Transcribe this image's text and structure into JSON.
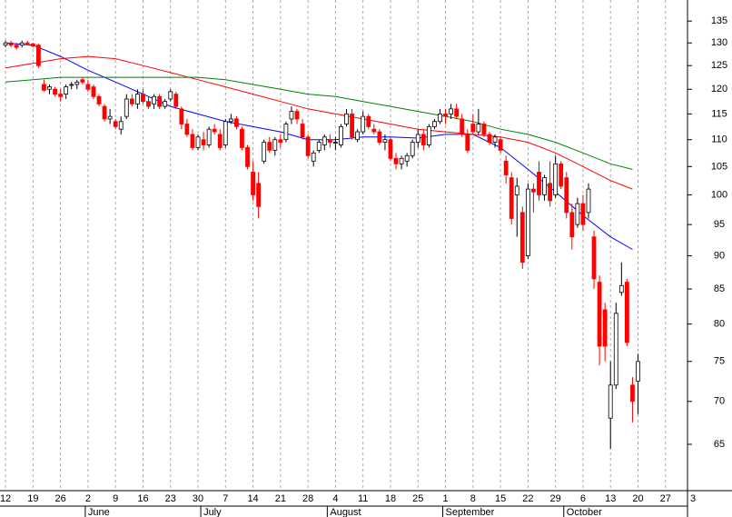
{
  "chart_data": {
    "type": "candlestick",
    "log": true,
    "grid": true,
    "ylim": [
      60,
      140
    ],
    "yticks": [
      65,
      70,
      75,
      80,
      85,
      90,
      95,
      100,
      105,
      110,
      115,
      120,
      125,
      130,
      135
    ],
    "xlim": [
      -1,
      124
    ],
    "xticks": [
      {
        "value": 0,
        "label": "12"
      },
      {
        "value": 5,
        "label": "19"
      },
      {
        "value": 10,
        "label": "26"
      },
      {
        "value": 15,
        "label": "2"
      },
      {
        "value": 20,
        "label": "9"
      },
      {
        "value": 25,
        "label": "16"
      },
      {
        "value": 30,
        "label": "23"
      },
      {
        "value": 35,
        "label": "30"
      },
      {
        "value": 40,
        "label": "7"
      },
      {
        "value": 45,
        "label": "14"
      },
      {
        "value": 50,
        "label": "21"
      },
      {
        "value": 55,
        "label": "28"
      },
      {
        "value": 60,
        "label": "4"
      },
      {
        "value": 65,
        "label": "11"
      },
      {
        "value": 70,
        "label": "18"
      },
      {
        "value": 75,
        "label": "25"
      },
      {
        "value": 80,
        "label": "1"
      },
      {
        "value": 85,
        "label": "8"
      },
      {
        "value": 90,
        "label": "15"
      },
      {
        "value": 95,
        "label": "22"
      },
      {
        "value": 100,
        "label": "29"
      },
      {
        "value": 105,
        "label": "6"
      },
      {
        "value": 110,
        "label": "13"
      },
      {
        "value": 115,
        "label": "20"
      },
      {
        "value": 120,
        "label": "27"
      },
      {
        "value": 125,
        "label": "3"
      }
    ],
    "month_ticks": [
      {
        "value": 15,
        "label": "June"
      },
      {
        "value": 36,
        "label": "July"
      },
      {
        "value": 59,
        "label": "August"
      },
      {
        "value": 80,
        "label": "September"
      },
      {
        "value": 102,
        "label": "October"
      }
    ],
    "up_color": "#ffffff",
    "down_color": "#ff0000",
    "candles": {
      "open": [
        129.5,
        130,
        129.5,
        129.5,
        130,
        129.8,
        129.5,
        121,
        120,
        120,
        119,
        119,
        121,
        121,
        122,
        121,
        120.5,
        118.5,
        116.5,
        114,
        113.5,
        112,
        114.5,
        118,
        117,
        119,
        117.5,
        117,
        118.5,
        116.5,
        118,
        119,
        116,
        113,
        111,
        108.5,
        110,
        109,
        112,
        111,
        109,
        113.5,
        114,
        112,
        108.5,
        104,
        102,
        106,
        109.5,
        108,
        110,
        110,
        114,
        115.5,
        113,
        110.5,
        106,
        108,
        109,
        110,
        109.5,
        109,
        113,
        115,
        110,
        111.5,
        114.5,
        112,
        111.5,
        109.5,
        110,
        106.5,
        105.5,
        106,
        107,
        109.5,
        111,
        109,
        112.5,
        113.5,
        115,
        115,
        116,
        114,
        111,
        113,
        111.5,
        113,
        111,
        109.5,
        110,
        106,
        103,
        100,
        97,
        90,
        101,
        104,
        100,
        102,
        100,
        105.5,
        103,
        97,
        95,
        98.5,
        97,
        93,
        86,
        82,
        68,
        72,
        84.5,
        86,
        72,
        72.5
      ],
      "high": [
        130.5,
        130.5,
        130,
        130.5,
        130.5,
        130,
        129.8,
        122,
        121,
        120.5,
        120,
        121,
        121.5,
        122,
        122.5,
        122,
        121,
        119,
        117,
        116,
        114,
        114.5,
        119,
        119,
        120,
        120,
        118.5,
        119,
        119,
        118,
        120,
        119.5,
        116.5,
        114,
        112,
        111,
        111.5,
        112.5,
        113,
        112,
        114,
        115,
        114.5,
        112.5,
        109,
        106,
        104,
        110,
        110.5,
        110.5,
        111,
        113.5,
        116.5,
        116,
        114,
        111,
        108,
        110,
        111,
        111,
        110.5,
        113,
        116,
        116,
        112,
        115.5,
        115,
        113,
        112,
        111,
        110.5,
        107.5,
        107,
        107.5,
        110,
        112,
        112,
        113,
        114,
        116,
        116,
        117,
        117,
        115,
        112,
        115,
        116,
        113.5,
        111.5,
        111,
        110.5,
        107,
        104,
        103,
        98,
        102,
        102,
        106,
        103.5,
        106,
        107,
        106,
        104,
        98.5,
        99.5,
        100,
        102,
        94,
        87,
        83,
        75,
        83,
        89,
        86.5,
        73,
        76
      ],
      "low": [
        129,
        129,
        128.5,
        129,
        129.5,
        129,
        124.5,
        119.5,
        119,
        118.5,
        117.5,
        118,
        120,
        120,
        121,
        119.5,
        118,
        116.5,
        113.5,
        113,
        112,
        111,
        114,
        116.5,
        116,
        117,
        116,
        116,
        116,
        116,
        117.5,
        116,
        112,
        110.5,
        108,
        108,
        108,
        108.5,
        111,
        108,
        108.5,
        113,
        112,
        108,
        104.5,
        99,
        96,
        105.5,
        107.5,
        107,
        108.5,
        109.5,
        113,
        113,
        110,
        106.5,
        105,
        107.5,
        108,
        108.5,
        108,
        108.5,
        112.5,
        110,
        109.5,
        111,
        112,
        111,
        109,
        108,
        106,
        104.5,
        104.5,
        105,
        106.5,
        108.5,
        108,
        108.5,
        112,
        113,
        113,
        114,
        114,
        110.5,
        107.5,
        111,
        111,
        110.5,
        109,
        108.5,
        107.5,
        102,
        95,
        93,
        88,
        89.5,
        97,
        99,
        99,
        98,
        99.5,
        101,
        96,
        91,
        94.5,
        94,
        96,
        85,
        74.5,
        75,
        64.5,
        71.5,
        84,
        77,
        67.5,
        68.5
      ],
      "close": [
        130,
        129.5,
        129,
        130,
        129.8,
        129.3,
        125,
        119.8,
        120.5,
        119,
        118.5,
        120.5,
        121,
        121.5,
        121.5,
        120,
        118.5,
        117,
        114,
        114.5,
        112.5,
        113.5,
        118,
        117,
        119,
        117.5,
        116.5,
        118.5,
        116.5,
        117.5,
        119.5,
        116.5,
        113,
        111,
        108.5,
        110.5,
        109,
        112,
        111.5,
        108.5,
        113.5,
        114,
        112.5,
        108.5,
        105,
        100,
        98,
        109.5,
        108,
        110,
        109.5,
        113,
        115.5,
        114,
        110.5,
        107,
        107.5,
        109.5,
        110.5,
        109.5,
        109.5,
        112.5,
        115,
        110.5,
        111.5,
        114.5,
        112.5,
        111.5,
        109.5,
        110,
        106.5,
        105.5,
        106.5,
        107,
        109.5,
        111,
        109,
        112.5,
        113.5,
        115,
        114.5,
        116,
        114.5,
        111,
        108,
        111.5,
        113,
        111,
        109.5,
        110.5,
        108,
        103.5,
        96,
        101.5,
        89,
        101,
        100.5,
        100,
        103,
        99,
        105.5,
        101.5,
        97,
        93,
        98.5,
        95,
        101,
        86.5,
        77,
        77,
        72,
        81.5,
        85.5,
        77.5,
        70,
        75
      ]
    },
    "series": [
      {
        "color": "#0000ff",
        "x": [
          0,
          5,
          10,
          15,
          20,
          25,
          30,
          35,
          40,
          45,
          50,
          55,
          60,
          65,
          70,
          75,
          80,
          85,
          90,
          95,
          100,
          105,
          110,
          114
        ],
        "values": [
          130,
          129.5,
          127,
          124,
          121.5,
          119,
          116.5,
          115,
          113.5,
          112.5,
          111.5,
          110,
          110,
          110.5,
          110.5,
          110.3,
          111,
          111,
          108.5,
          104.5,
          100.5,
          96.5,
          93,
          91
        ]
      },
      {
        "color": "#ff0000",
        "x": [
          0,
          5,
          10,
          15,
          20,
          25,
          30,
          35,
          40,
          45,
          50,
          55,
          60,
          65,
          70,
          75,
          80,
          85,
          90,
          95,
          100,
          105,
          110,
          114
        ],
        "values": [
          124.5,
          125.5,
          126.5,
          127,
          126.5,
          125,
          123.5,
          122,
          120.5,
          119,
          117.5,
          116,
          115,
          114,
          113,
          112,
          111.5,
          111,
          110.5,
          109.5,
          107.5,
          105,
          102.5,
          101
        ]
      },
      {
        "color": "#008000",
        "x": [
          0,
          5,
          10,
          15,
          20,
          25,
          30,
          35,
          40,
          45,
          50,
          55,
          60,
          65,
          70,
          75,
          80,
          85,
          90,
          95,
          100,
          105,
          110,
          114
        ],
        "values": [
          121.5,
          122,
          122.5,
          122.5,
          122.5,
          122.5,
          122.5,
          122.5,
          122,
          121,
          120,
          119,
          118.5,
          117.5,
          116.5,
          115.5,
          114.5,
          113.5,
          112,
          111,
          109.5,
          107.5,
          105.5,
          104.5
        ]
      }
    ]
  }
}
